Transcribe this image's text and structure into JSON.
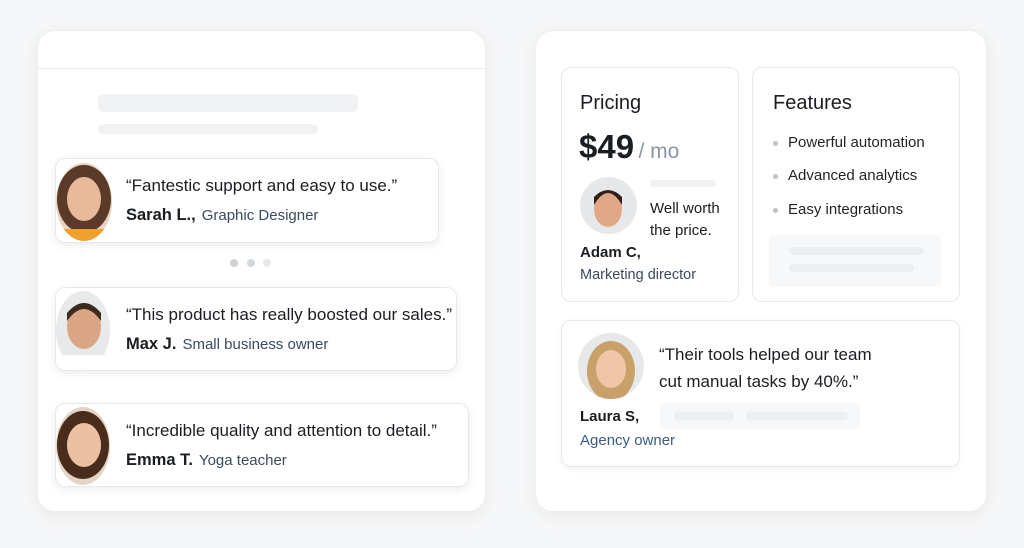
{
  "testimonials": [
    {
      "quote": "“Fantestic support and easy to use.”",
      "name": "Sarah L.,",
      "role": "Graphic Designer"
    },
    {
      "quote": "“This product has really boosted our sales.”",
      "name": "Max J.",
      "role": "Small business owner"
    },
    {
      "quote": "“Incredible quality and attention to detail.”",
      "name": "Emma T.",
      "role": "Yoga teacher"
    }
  ],
  "carousel": {
    "dots": 3,
    "active": 0
  },
  "pricing": {
    "title": "Pricing",
    "price": "$49",
    "period": "/ mo",
    "quote_line1": "Well worth",
    "quote_line2": "the price.",
    "name": "Adam C,",
    "role": "Marketing director"
  },
  "features": {
    "title": "Features",
    "items": [
      "Powerful automation",
      "Advanced analytics",
      "Easy integrations"
    ]
  },
  "featured": {
    "quote_line1": "“Their tools helped our team",
    "quote_line2": "cut manual tasks by 40%.”",
    "name": "Laura S,",
    "role": "Agency owner"
  }
}
